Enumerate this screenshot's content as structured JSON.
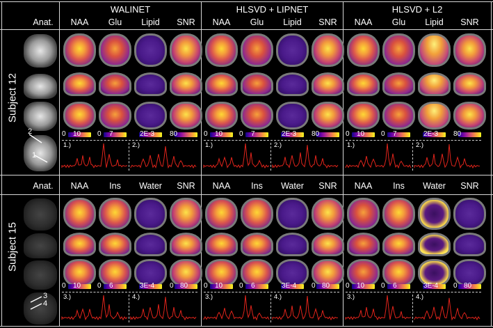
{
  "subjects": [
    {
      "label": "Subject 12",
      "anat": "Anat.",
      "metabolites": [
        "NAA",
        "Glu",
        "Lipid",
        "SNR"
      ],
      "scales": [
        "0",
        "10",
        "0",
        "7",
        "2E-3",
        "80"
      ],
      "spectra": [
        "1.)",
        "2.)"
      ]
    },
    {
      "label": "Subject 15",
      "anat": "Anat.",
      "metabolites": [
        "NAA",
        "Ins",
        "Water",
        "SNR"
      ],
      "scales": [
        "0",
        "10",
        "0",
        "6",
        "3E-4",
        "0",
        "80"
      ],
      "spectra": [
        "3.)",
        "4.)"
      ]
    }
  ],
  "methods": [
    "WALINET",
    "HLSVD + LIPNET",
    "HLSVD + L2"
  ],
  "anat_markers": [
    "2",
    "1",
    "3",
    "4"
  ],
  "colors": {
    "spectrum": "#e0241b",
    "background": "#000000",
    "divider": "#d8d8d8"
  }
}
